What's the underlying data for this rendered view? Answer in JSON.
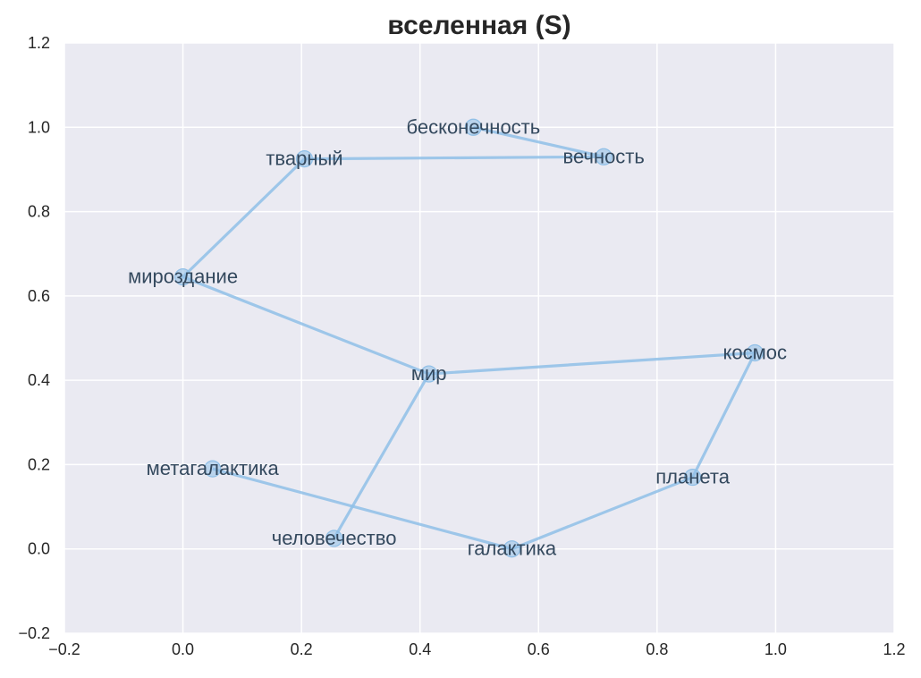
{
  "chart_data": {
    "type": "scatter",
    "title": "вселенная (S)",
    "xlabel": "",
    "ylabel": "",
    "xlim": [
      -0.2,
      1.2
    ],
    "ylim": [
      -0.2,
      1.2
    ],
    "xticks": [
      -0.2,
      0.0,
      0.2,
      0.4,
      0.6,
      0.8,
      1.0,
      1.2
    ],
    "yticks": [
      -0.2,
      0.0,
      0.2,
      0.4,
      0.6,
      0.8,
      1.0,
      1.2
    ],
    "xtick_labels": [
      "−0.2",
      "0.0",
      "0.2",
      "0.4",
      "0.6",
      "0.8",
      "1.0",
      "1.2"
    ],
    "ytick_labels": [
      "−0.2",
      "0.0",
      "0.2",
      "0.4",
      "0.6",
      "0.8",
      "1.0",
      "1.2"
    ],
    "grid": true,
    "background_color": "#eaeaf2",
    "series_color": "#8fbfe7",
    "label_color": "#34495e",
    "connected_path": true,
    "points": [
      {
        "label": "бесконечность",
        "x": 0.49,
        "y": 1.0
      },
      {
        "label": "вечность",
        "x": 0.71,
        "y": 0.93
      },
      {
        "label": "тварный",
        "x": 0.205,
        "y": 0.925
      },
      {
        "label": "мироздание",
        "x": 0.0,
        "y": 0.645
      },
      {
        "label": "мир",
        "x": 0.415,
        "y": 0.415
      },
      {
        "label": "космос",
        "x": 0.965,
        "y": 0.465
      },
      {
        "label": "планета",
        "x": 0.86,
        "y": 0.17
      },
      {
        "label": "галактика",
        "x": 0.555,
        "y": 0.0
      },
      {
        "label": "метагалактика",
        "x": 0.05,
        "y": 0.19
      },
      {
        "label": "человечество",
        "x": 0.255,
        "y": 0.025
      }
    ],
    "path_order": [
      "бесконечность",
      "вечность",
      "тварный",
      "мироздание",
      "мир",
      "космос",
      "планета",
      "галактика",
      "метагалактика"
    ],
    "extra_segments": [
      [
        "мир",
        "человечество"
      ]
    ]
  }
}
